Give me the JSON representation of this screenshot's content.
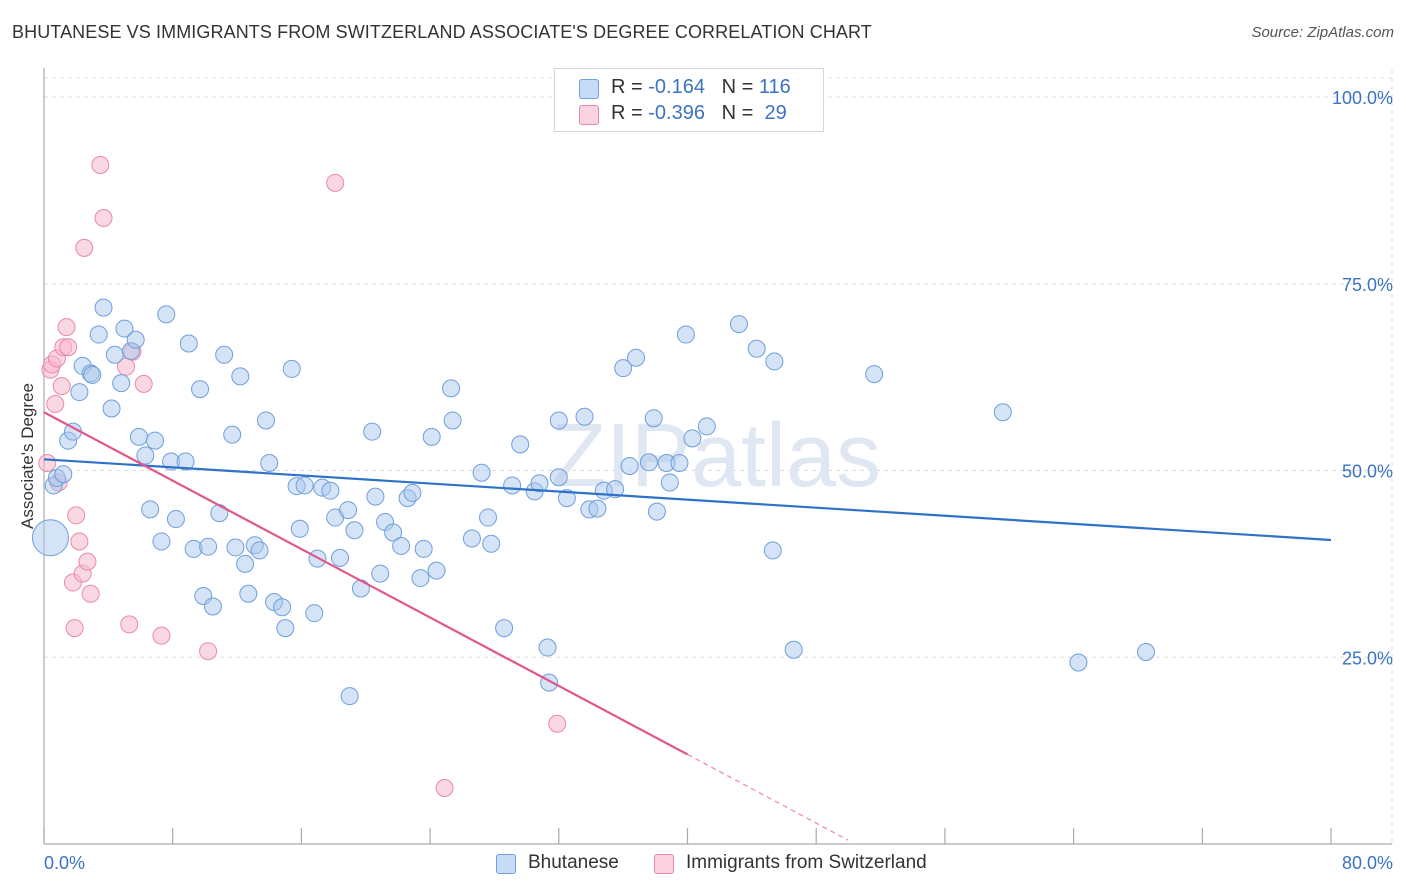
{
  "title": "BHUTANESE VS IMMIGRANTS FROM SWITZERLAND ASSOCIATE'S DEGREE CORRELATION CHART",
  "source": "Source: ZipAtlas.com",
  "watermark": "ZIPatlas",
  "legend": {
    "rows": [
      {
        "r_label": "R = ",
        "r_value": "-0.164",
        "n_label": "N = ",
        "n_value": "116"
      },
      {
        "r_label": "R = ",
        "r_value": "-0.396",
        "n_label": "N = ",
        "n_value": " 29"
      }
    ]
  },
  "bottom_legend": [
    "Bhutanese",
    "Immigrants from Switzerland"
  ],
  "colors": {
    "blue_fill": "#aac8ec",
    "blue_stroke": "#6f9fdc",
    "blue_line": "#2f72c8",
    "pink_fill": "#f6b8cc",
    "pink_stroke": "#ea8aa8",
    "pink_line": "#e0578a",
    "axis_text": "#3a73c4",
    "grid": "#dddddd"
  },
  "chart_data": {
    "type": "scatter",
    "title": "BHUTANESE VS IMMIGRANTS FROM SWITZERLAND ASSOCIATE'S DEGREE CORRELATION CHART",
    "xlabel": "",
    "ylabel": "Associate's Degree",
    "xlim": [
      0,
      80
    ],
    "ylim": [
      0,
      105
    ],
    "x_tick_labels": [
      "0.0%",
      "80.0%"
    ],
    "y_ticks": [
      25,
      50,
      75,
      100
    ],
    "y_tick_labels": [
      "25.0%",
      "50.0%",
      "75.0%",
      "100.0%"
    ],
    "grid": true,
    "legend_position": "top-center",
    "series": [
      {
        "name": "Bhutanese",
        "R": -0.164,
        "N": 116,
        "trend": {
          "x": [
            0,
            80
          ],
          "y": [
            51.5,
            40.7
          ]
        },
        "points": [
          [
            0.4,
            41.0
          ],
          [
            0.6,
            48.0
          ],
          [
            0.8,
            49.0
          ],
          [
            1.2,
            49.5
          ],
          [
            1.5,
            54.0
          ],
          [
            1.8,
            55.2
          ],
          [
            2.2,
            60.5
          ],
          [
            2.4,
            64.0
          ],
          [
            2.9,
            63.0
          ],
          [
            3.0,
            62.8
          ],
          [
            3.4,
            68.2
          ],
          [
            3.7,
            71.8
          ],
          [
            4.2,
            58.3
          ],
          [
            4.4,
            65.5
          ],
          [
            4.8,
            61.7
          ],
          [
            5.0,
            69.0
          ],
          [
            5.4,
            66.0
          ],
          [
            5.7,
            67.5
          ],
          [
            5.9,
            54.5
          ],
          [
            6.3,
            52.0
          ],
          [
            6.6,
            44.8
          ],
          [
            6.9,
            54.0
          ],
          [
            7.3,
            40.5
          ],
          [
            7.6,
            70.9
          ],
          [
            7.9,
            51.2
          ],
          [
            8.2,
            43.5
          ],
          [
            8.8,
            51.2
          ],
          [
            9.0,
            67.0
          ],
          [
            9.3,
            39.5
          ],
          [
            9.7,
            60.9
          ],
          [
            9.9,
            33.2
          ],
          [
            10.2,
            39.8
          ],
          [
            10.5,
            31.8
          ],
          [
            10.9,
            44.3
          ],
          [
            11.2,
            65.5
          ],
          [
            11.7,
            54.8
          ],
          [
            11.9,
            39.7
          ],
          [
            12.2,
            62.6
          ],
          [
            12.5,
            37.5
          ],
          [
            12.7,
            33.5
          ],
          [
            13.1,
            40.0
          ],
          [
            13.4,
            39.3
          ],
          [
            13.8,
            56.7
          ],
          [
            14.0,
            51.0
          ],
          [
            14.3,
            32.4
          ],
          [
            14.8,
            31.7
          ],
          [
            15.0,
            28.9
          ],
          [
            15.4,
            63.6
          ],
          [
            15.7,
            47.9
          ],
          [
            15.9,
            42.2
          ],
          [
            16.2,
            48.0
          ],
          [
            16.8,
            30.9
          ],
          [
            17.0,
            38.2
          ],
          [
            17.3,
            47.7
          ],
          [
            17.8,
            47.3
          ],
          [
            18.1,
            43.7
          ],
          [
            18.4,
            38.3
          ],
          [
            18.9,
            44.7
          ],
          [
            19.0,
            19.8
          ],
          [
            19.3,
            42.0
          ],
          [
            19.7,
            34.2
          ],
          [
            20.4,
            55.2
          ],
          [
            20.6,
            46.5
          ],
          [
            20.9,
            36.2
          ],
          [
            21.2,
            43.1
          ],
          [
            21.7,
            41.7
          ],
          [
            22.2,
            39.9
          ],
          [
            22.6,
            46.3
          ],
          [
            22.9,
            47.0
          ],
          [
            23.4,
            35.6
          ],
          [
            23.6,
            39.5
          ],
          [
            24.1,
            54.5
          ],
          [
            24.4,
            36.6
          ],
          [
            25.3,
            61.0
          ],
          [
            25.4,
            56.7
          ],
          [
            26.6,
            40.9
          ],
          [
            27.2,
            49.7
          ],
          [
            27.6,
            43.7
          ],
          [
            27.8,
            40.2
          ],
          [
            28.6,
            28.9
          ],
          [
            29.1,
            48.0
          ],
          [
            29.6,
            53.5
          ],
          [
            30.5,
            47.2
          ],
          [
            30.8,
            48.3
          ],
          [
            31.3,
            26.3
          ],
          [
            31.4,
            21.6
          ],
          [
            32.0,
            49.1
          ],
          [
            32.0,
            56.7
          ],
          [
            32.5,
            46.3
          ],
          [
            33.6,
            57.2
          ],
          [
            33.9,
            44.8
          ],
          [
            34.4,
            44.9
          ],
          [
            34.8,
            47.3
          ],
          [
            35.5,
            47.5
          ],
          [
            36.0,
            63.7
          ],
          [
            36.4,
            50.6
          ],
          [
            36.8,
            65.1
          ],
          [
            37.6,
            51.1
          ],
          [
            37.9,
            57.0
          ],
          [
            38.1,
            44.5
          ],
          [
            38.7,
            51.0
          ],
          [
            38.9,
            48.4
          ],
          [
            39.5,
            51.0
          ],
          [
            39.9,
            68.2
          ],
          [
            40.3,
            54.3
          ],
          [
            41.2,
            55.9
          ],
          [
            43.2,
            69.6
          ],
          [
            44.3,
            66.3
          ],
          [
            45.3,
            39.3
          ],
          [
            45.4,
            64.6
          ],
          [
            46.6,
            26.0
          ],
          [
            51.6,
            62.9
          ],
          [
            59.6,
            57.8
          ],
          [
            64.3,
            24.3
          ],
          [
            68.5,
            25.7
          ]
        ]
      },
      {
        "name": "Immigrants from Switzerland",
        "R": -0.396,
        "N": 29,
        "trend": {
          "x": [
            0,
            40
          ],
          "y": [
            57.8,
            12.0
          ]
        },
        "trend_dashed_to": {
          "x": 50,
          "y": 0.5
        },
        "points": [
          [
            0.2,
            51.0
          ],
          [
            0.4,
            63.5
          ],
          [
            0.5,
            64.2
          ],
          [
            0.7,
            58.9
          ],
          [
            0.8,
            65.0
          ],
          [
            0.9,
            48.4
          ],
          [
            1.1,
            61.3
          ],
          [
            1.2,
            66.5
          ],
          [
            1.4,
            69.2
          ],
          [
            1.5,
            66.5
          ],
          [
            1.8,
            35.0
          ],
          [
            1.9,
            28.9
          ],
          [
            2.0,
            44.0
          ],
          [
            2.2,
            40.5
          ],
          [
            2.4,
            36.2
          ],
          [
            2.5,
            79.8
          ],
          [
            2.7,
            37.8
          ],
          [
            2.9,
            33.5
          ],
          [
            3.5,
            90.9
          ],
          [
            3.7,
            83.8
          ],
          [
            5.1,
            63.9
          ],
          [
            5.3,
            29.4
          ],
          [
            5.5,
            65.9
          ],
          [
            6.2,
            61.6
          ],
          [
            7.3,
            27.9
          ],
          [
            10.2,
            25.8
          ],
          [
            18.1,
            88.5
          ],
          [
            31.9,
            16.1
          ],
          [
            24.9,
            7.5
          ]
        ]
      }
    ]
  }
}
